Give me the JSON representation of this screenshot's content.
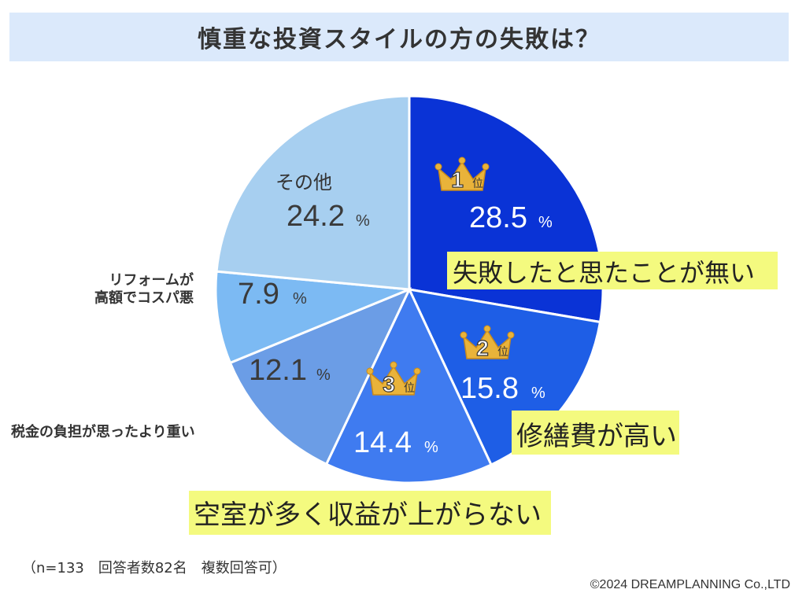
{
  "title": "慎重な投資スタイルの方の失敗は？",
  "note": "（n=133　回答者数82名　複数回答可）",
  "copyright": "©2024 DREAMPLANNING Co.,LTD",
  "chart_data": {
    "type": "pie",
    "title": "慎重な投資スタイルの方の失敗は？",
    "unit": "%",
    "slices": [
      {
        "label": "失敗したと思たことが無い",
        "value": 28.5,
        "value_text": "28.5",
        "color": "#0a33d6",
        "rank": "1",
        "rank_suffix": "位"
      },
      {
        "label": "修繕費が高い",
        "value": 15.8,
        "value_text": "15.8",
        "color": "#1e5ee6",
        "rank": "2",
        "rank_suffix": "位"
      },
      {
        "label": "空室が多く収益が上がらない",
        "value": 14.4,
        "value_text": "14.4",
        "color": "#3f7bf0",
        "rank": "3",
        "rank_suffix": "位"
      },
      {
        "label": "税金の負担が思ったより重い",
        "value": 12.1,
        "value_text": "12.1",
        "color": "#6b9de6",
        "rank": "",
        "rank_suffix": ""
      },
      {
        "label": "リフォームが\n高額でコスパ悪",
        "value": 7.9,
        "value_text": "7.9",
        "color": "#7cbaf3",
        "rank": "",
        "rank_suffix": ""
      },
      {
        "label": "その他",
        "value": 24.2,
        "value_text": "24.2",
        "color": "#a7cff0",
        "rank": "",
        "rank_suffix": ""
      }
    ],
    "colors": {
      "highlight": "#f4fa7f",
      "value_dark": "#3a3a3a",
      "value_light": "#ffffff",
      "crown": "#e9b33a"
    }
  }
}
